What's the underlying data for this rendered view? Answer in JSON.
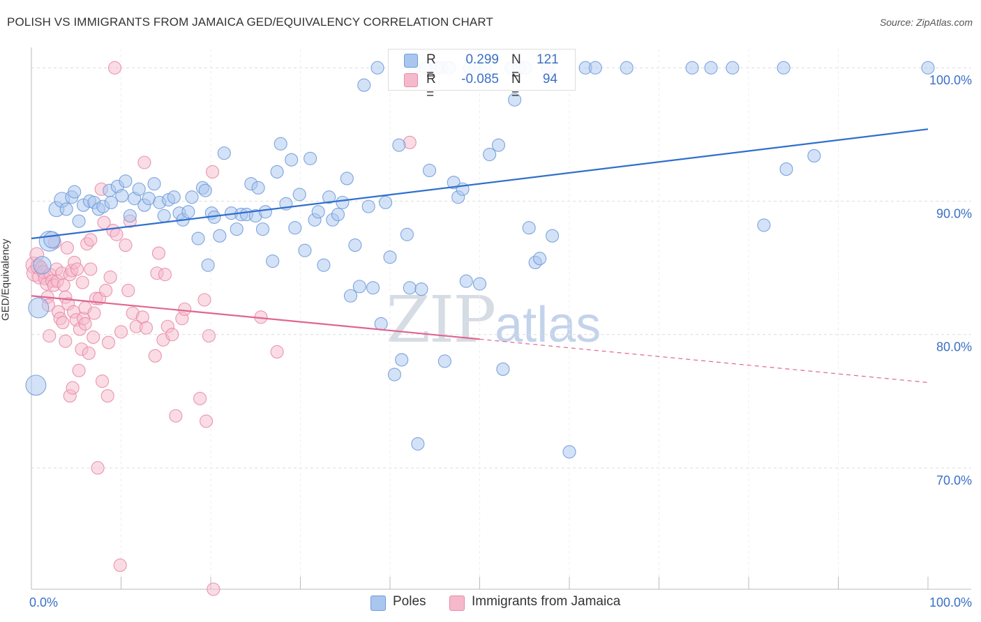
{
  "header": {
    "title": "POLISH VS IMMIGRANTS FROM JAMAICA GED/EQUIVALENCY CORRELATION CHART",
    "source": "Source: ZipAtlas.com"
  },
  "watermark": {
    "zip": "ZIP",
    "atlas": "atlas"
  },
  "legend_top": {
    "poles": {
      "r_label": "R =",
      "r_value": "0.299",
      "n_label": "N =",
      "n_value": "121"
    },
    "jamaica": {
      "r_label": "R =",
      "r_value": "-0.085",
      "n_label": "N =",
      "n_value": "94"
    }
  },
  "legend_bottom": {
    "poles": "Poles",
    "jamaica": "Immigrants from Jamaica"
  },
  "colors": {
    "poles_fill": "#a9c6ef",
    "poles_stroke": "#6f9bd9",
    "poles_line": "#2f6fcd",
    "jamaica_fill": "#f6b9cc",
    "jamaica_stroke": "#e88aa8",
    "jamaica_line": "#e06590",
    "axis_text": "#3b6fc4",
    "grid": "#dcdcdc"
  },
  "chart_data": {
    "type": "scatter",
    "ylabel": "GED/Equivalency",
    "xlim": [
      0,
      100
    ],
    "ylim": [
      60.9,
      100.9
    ],
    "x_tick_labels": [
      "0.0%",
      "100.0%"
    ],
    "y_ticks": [
      {
        "value": 100,
        "label": "100.0%"
      },
      {
        "value": 90,
        "label": "90.0%"
      },
      {
        "value": 80,
        "label": "80.0%"
      },
      {
        "value": 70,
        "label": "70.0%"
      }
    ],
    "grid": true,
    "series": [
      {
        "name": "Poles",
        "trend": {
          "x": [
            0,
            100
          ],
          "y": [
            87.2,
            95.4
          ],
          "solid_until": 100
        },
        "points": [
          [
            0.5,
            76.2,
            1.6
          ],
          [
            0.8,
            82.0,
            1.6
          ],
          [
            1.2,
            85.2,
            1.4
          ],
          [
            2.0,
            87.0,
            1.6
          ],
          [
            2.3,
            87.1,
            1.3
          ],
          [
            2.8,
            89.4,
            1.2
          ],
          [
            3.4,
            90.1,
            1.2
          ],
          [
            3.9,
            89.4,
            1.0
          ],
          [
            4.5,
            90.3,
            1.0
          ],
          [
            4.8,
            90.7,
            1.0
          ],
          [
            5.3,
            88.5,
            1.0
          ],
          [
            5.8,
            89.7,
            1.0
          ],
          [
            6.5,
            90.0,
            1.0
          ],
          [
            7.0,
            89.9,
            1.0
          ],
          [
            7.5,
            89.4,
            1.0
          ],
          [
            8.0,
            89.6,
            1.0
          ],
          [
            8.7,
            90.8,
            1.0
          ],
          [
            8.9,
            89.9,
            1.0
          ],
          [
            9.6,
            91.1,
            1.0
          ],
          [
            10.1,
            90.4,
            1.0
          ],
          [
            10.5,
            91.5,
            1.0
          ],
          [
            11.0,
            88.9,
            1.0
          ],
          [
            11.5,
            90.2,
            1.0
          ],
          [
            12.0,
            90.9,
            1.0
          ],
          [
            12.6,
            89.7,
            1.0
          ],
          [
            13.1,
            90.2,
            1.0
          ],
          [
            13.7,
            91.3,
            1.0
          ],
          [
            14.3,
            89.9,
            1.0
          ],
          [
            14.8,
            88.9,
            1.0
          ],
          [
            15.3,
            90.1,
            1.0
          ],
          [
            15.9,
            90.3,
            1.0
          ],
          [
            16.5,
            89.1,
            1.0
          ],
          [
            16.9,
            88.6,
            1.0
          ],
          [
            17.5,
            89.2,
            1.0
          ],
          [
            17.9,
            90.3,
            1.0
          ],
          [
            18.6,
            87.2,
            1.0
          ],
          [
            19.1,
            91.0,
            1.0
          ],
          [
            19.4,
            90.8,
            1.0
          ],
          [
            19.7,
            85.2,
            1.0
          ],
          [
            20.1,
            89.1,
            1.0
          ],
          [
            20.4,
            88.8,
            1.0
          ],
          [
            21.0,
            87.4,
            1.0
          ],
          [
            21.5,
            93.6,
            1.0
          ],
          [
            22.3,
            89.1,
            1.0
          ],
          [
            22.9,
            87.9,
            1.0
          ],
          [
            23.4,
            89.0,
            1.0
          ],
          [
            24.0,
            89.0,
            1.0
          ],
          [
            24.5,
            91.3,
            1.0
          ],
          [
            25.0,
            88.9,
            1.0
          ],
          [
            25.3,
            91.0,
            1.0
          ],
          [
            25.8,
            87.9,
            1.0
          ],
          [
            26.1,
            89.2,
            1.0
          ],
          [
            26.9,
            85.5,
            1.0
          ],
          [
            27.4,
            92.2,
            1.0
          ],
          [
            27.8,
            94.3,
            1.0
          ],
          [
            28.4,
            89.8,
            1.0
          ],
          [
            29.0,
            93.1,
            1.0
          ],
          [
            29.4,
            88.0,
            1.0
          ],
          [
            29.9,
            90.5,
            1.0
          ],
          [
            30.5,
            86.3,
            1.0
          ],
          [
            31.1,
            93.2,
            1.0
          ],
          [
            31.6,
            88.6,
            1.0
          ],
          [
            32.0,
            89.2,
            1.0
          ],
          [
            32.6,
            85.2,
            1.0
          ],
          [
            33.2,
            90.3,
            1.0
          ],
          [
            33.6,
            88.6,
            1.0
          ],
          [
            34.2,
            89.0,
            1.0
          ],
          [
            34.7,
            89.9,
            1.0
          ],
          [
            35.2,
            91.7,
            1.0
          ],
          [
            35.6,
            82.9,
            1.0
          ],
          [
            36.1,
            86.7,
            1.0
          ],
          [
            36.6,
            83.6,
            1.0
          ],
          [
            37.1,
            98.7,
            1.0
          ],
          [
            37.6,
            89.6,
            1.0
          ],
          [
            38.1,
            83.5,
            1.0
          ],
          [
            38.6,
            100.0,
            1.0
          ],
          [
            39.0,
            80.8,
            1.0
          ],
          [
            39.5,
            89.9,
            1.0
          ],
          [
            40.0,
            85.8,
            1.0
          ],
          [
            40.5,
            77.0,
            1.0
          ],
          [
            41.0,
            94.2,
            1.0
          ],
          [
            41.3,
            78.1,
            1.0
          ],
          [
            41.9,
            87.5,
            1.0
          ],
          [
            42.2,
            83.5,
            1.0
          ],
          [
            42.7,
            100.0,
            1.0
          ],
          [
            43.1,
            71.8,
            1.0
          ],
          [
            43.5,
            83.4,
            1.0
          ],
          [
            44.0,
            100.0,
            1.0
          ],
          [
            44.4,
            92.3,
            1.0
          ],
          [
            45.2,
            100.0,
            1.0
          ],
          [
            45.7,
            100.0,
            1.0
          ],
          [
            46.1,
            78.0,
            1.0
          ],
          [
            46.6,
            100.0,
            1.0
          ],
          [
            47.1,
            91.4,
            1.0
          ],
          [
            47.6,
            90.3,
            1.0
          ],
          [
            48.1,
            90.9,
            1.0
          ],
          [
            48.5,
            84.0,
            1.0
          ],
          [
            48.9,
            100.0,
            1.0
          ],
          [
            49.5,
            100.0,
            1.0
          ],
          [
            50.0,
            83.8,
            1.0
          ],
          [
            50.6,
            100.0,
            1.0
          ],
          [
            51.1,
            93.5,
            1.0
          ],
          [
            52.1,
            94.2,
            1.0
          ],
          [
            52.6,
            77.4,
            1.0
          ],
          [
            53.5,
            100.0,
            1.0
          ],
          [
            53.9,
            97.6,
            1.0
          ],
          [
            54.4,
            100.0,
            1.0
          ],
          [
            55.1,
            100.0,
            1.0
          ],
          [
            55.5,
            88.0,
            1.0
          ],
          [
            56.2,
            85.4,
            1.0
          ],
          [
            56.7,
            85.7,
            1.0
          ],
          [
            57.6,
            100.0,
            1.0
          ],
          [
            58.1,
            87.4,
            1.0
          ],
          [
            60.0,
            71.2,
            1.0
          ],
          [
            61.8,
            100.0,
            1.0
          ],
          [
            62.9,
            100.0,
            1.0
          ],
          [
            66.4,
            100.0,
            1.0
          ],
          [
            73.7,
            100.0,
            1.0
          ],
          [
            75.8,
            100.0,
            1.0
          ],
          [
            78.2,
            100.0,
            1.0
          ],
          [
            81.7,
            88.2,
            1.0
          ],
          [
            83.9,
            100.0,
            1.0
          ],
          [
            84.2,
            92.4,
            1.0
          ],
          [
            87.3,
            93.4,
            1.0
          ],
          [
            100.0,
            100.0,
            1.0
          ]
        ]
      },
      {
        "name": "Immigrants from Jamaica",
        "trend": {
          "x": [
            0,
            100
          ],
          "y": [
            82.9,
            76.4
          ],
          "solid_until": 50
        },
        "points": [
          [
            0.3,
            85.2,
            1.3
          ],
          [
            0.4,
            84.6,
            1.3
          ],
          [
            0.6,
            86.0,
            1.1
          ],
          [
            0.8,
            85.1,
            1.2
          ],
          [
            0.9,
            84.3,
            1.1
          ],
          [
            1.1,
            85.0,
            1.0
          ],
          [
            1.3,
            84.7,
            1.0
          ],
          [
            1.5,
            84.2,
            1.0
          ],
          [
            1.7,
            83.8,
            1.0
          ],
          [
            1.8,
            82.8,
            1.0
          ],
          [
            1.9,
            82.2,
            1.0
          ],
          [
            2.0,
            79.9,
            1.0
          ],
          [
            2.1,
            84.5,
            1.0
          ],
          [
            2.3,
            84.0,
            1.0
          ],
          [
            2.5,
            83.7,
            1.0
          ],
          [
            2.6,
            86.9,
            1.0
          ],
          [
            2.8,
            84.9,
            1.0
          ],
          [
            2.9,
            84.0,
            1.0
          ],
          [
            3.0,
            81.7,
            1.0
          ],
          [
            3.2,
            81.2,
            1.0
          ],
          [
            3.4,
            84.6,
            1.0
          ],
          [
            3.5,
            80.9,
            1.0
          ],
          [
            3.6,
            83.7,
            1.0
          ],
          [
            3.8,
            79.5,
            1.0
          ],
          [
            3.8,
            82.8,
            1.0
          ],
          [
            4.0,
            86.5,
            1.0
          ],
          [
            4.1,
            82.3,
            1.0
          ],
          [
            4.3,
            84.5,
            1.0
          ],
          [
            4.3,
            75.4,
            1.0
          ],
          [
            4.5,
            84.8,
            1.0
          ],
          [
            4.6,
            76.0,
            1.0
          ],
          [
            4.7,
            81.7,
            1.0
          ],
          [
            4.8,
            85.4,
            1.0
          ],
          [
            5.0,
            81.1,
            1.0
          ],
          [
            5.1,
            84.9,
            1.0
          ],
          [
            5.3,
            77.3,
            1.0
          ],
          [
            5.4,
            80.4,
            1.0
          ],
          [
            5.6,
            78.9,
            1.0
          ],
          [
            5.7,
            83.9,
            1.0
          ],
          [
            5.8,
            81.2,
            1.0
          ],
          [
            6.0,
            80.8,
            1.0
          ],
          [
            6.0,
            82.0,
            1.0
          ],
          [
            6.2,
            86.8,
            1.0
          ],
          [
            6.4,
            78.6,
            1.0
          ],
          [
            6.6,
            87.1,
            1.0
          ],
          [
            6.6,
            84.9,
            1.0
          ],
          [
            6.9,
            79.8,
            1.0
          ],
          [
            7.0,
            81.6,
            1.0
          ],
          [
            7.2,
            82.7,
            1.0
          ],
          [
            7.4,
            70.0,
            1.0
          ],
          [
            7.6,
            82.7,
            1.0
          ],
          [
            7.8,
            90.9,
            1.0
          ],
          [
            7.9,
            76.5,
            1.0
          ],
          [
            8.1,
            88.4,
            1.0
          ],
          [
            8.3,
            83.3,
            1.0
          ],
          [
            8.5,
            75.4,
            1.0
          ],
          [
            8.6,
            79.4,
            1.0
          ],
          [
            8.8,
            84.3,
            1.0
          ],
          [
            9.1,
            87.8,
            1.0
          ],
          [
            9.3,
            100.0,
            1.0
          ],
          [
            9.5,
            87.5,
            1.0
          ],
          [
            9.9,
            62.7,
            1.0
          ],
          [
            10.0,
            80.2,
            1.0
          ],
          [
            10.5,
            86.7,
            1.0
          ],
          [
            10.8,
            83.3,
            1.0
          ],
          [
            11.0,
            88.5,
            1.0
          ],
          [
            11.3,
            81.6,
            1.0
          ],
          [
            11.7,
            80.6,
            1.0
          ],
          [
            12.4,
            81.3,
            1.0
          ],
          [
            12.6,
            92.9,
            1.0
          ],
          [
            12.8,
            80.5,
            1.0
          ],
          [
            13.8,
            78.4,
            1.0
          ],
          [
            14.0,
            84.6,
            1.0
          ],
          [
            14.2,
            86.1,
            1.0
          ],
          [
            14.7,
            79.6,
            1.0
          ],
          [
            14.9,
            84.5,
            1.0
          ],
          [
            15.2,
            80.6,
            1.0
          ],
          [
            15.7,
            80.0,
            1.0
          ],
          [
            16.1,
            73.9,
            1.0
          ],
          [
            16.8,
            81.2,
            1.0
          ],
          [
            17.1,
            81.9,
            1.0
          ],
          [
            18.8,
            75.2,
            1.0
          ],
          [
            19.3,
            82.6,
            1.0
          ],
          [
            19.5,
            73.5,
            1.0
          ],
          [
            19.8,
            79.9,
            1.0
          ],
          [
            20.2,
            92.2,
            1.0
          ],
          [
            20.3,
            60.9,
            1.0
          ],
          [
            25.6,
            81.3,
            1.0
          ],
          [
            27.4,
            78.7,
            1.0
          ],
          [
            42.2,
            94.4,
            1.0
          ]
        ]
      }
    ]
  }
}
